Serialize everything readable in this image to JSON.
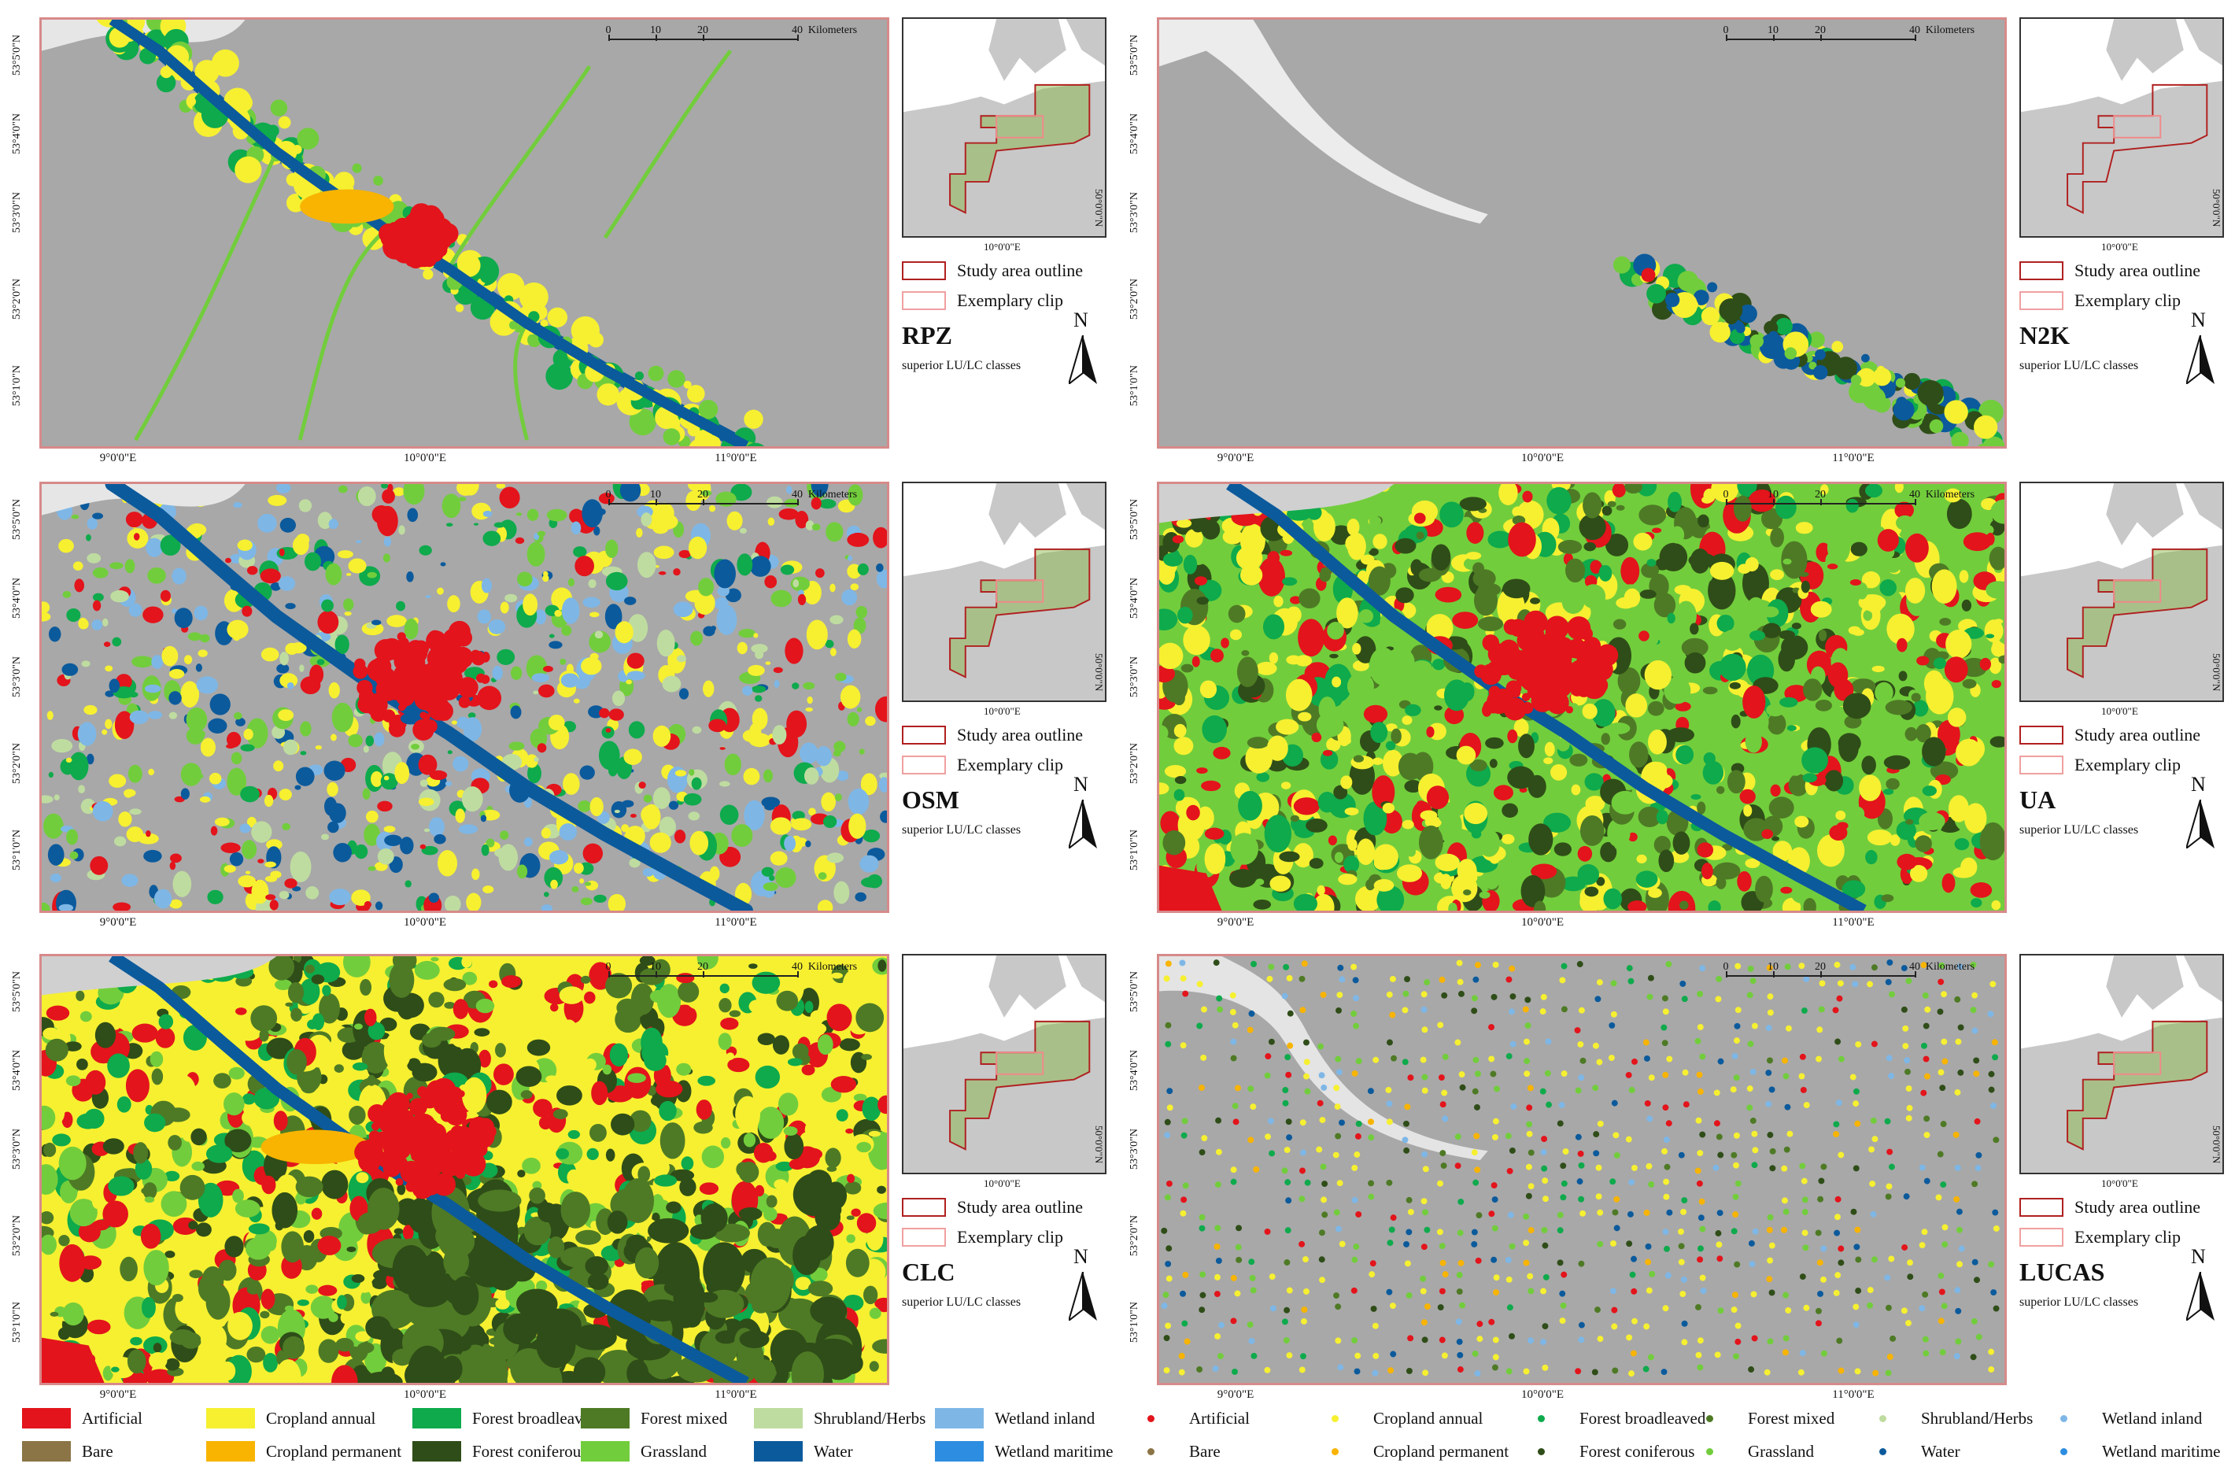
{
  "lat_ticks": [
    "53°5'0\"N",
    "53°4'0\"N",
    "53°3'0\"N",
    "53°2'0\"N",
    "53°1'0\"N"
  ],
  "lon_ticks": [
    "9°0'0\"E",
    "10°0'0\"E",
    "11°0'0\"E"
  ],
  "scale": {
    "ticks": [
      "0",
      "10",
      "20",
      "40"
    ],
    "unit": "Kilometers"
  },
  "inset": {
    "lon": "10°0'0\"E",
    "lat": "50°0'0\"N"
  },
  "inset_legend": {
    "study": "Study area outline",
    "clip": "Exemplary clip"
  },
  "superior": "superior LU/LC classes",
  "north": "N",
  "panels": [
    {
      "name": "RPZ",
      "style": "rpz"
    },
    {
      "name": "N2K",
      "style": "n2k"
    },
    {
      "name": "OSM",
      "style": "osm"
    },
    {
      "name": "UA",
      "style": "ua"
    },
    {
      "name": "CLC",
      "style": "clc"
    },
    {
      "name": "LUCAS",
      "style": "lucas"
    }
  ],
  "legend": [
    {
      "label": "Artificial",
      "color": "#e3141b"
    },
    {
      "label": "Bare",
      "color": "#8b7446"
    },
    {
      "label": "Cropland annual",
      "color": "#f6f031"
    },
    {
      "label": "Cropland permanent",
      "color": "#f8b400"
    },
    {
      "label": "Forest broadleaved",
      "color": "#0eaa4c"
    },
    {
      "label": "Forest coniferous",
      "color": "#2f4d18"
    },
    {
      "label": "Forest mixed",
      "color": "#4e7a25"
    },
    {
      "label": "Grassland",
      "color": "#72cd3c"
    },
    {
      "label": "Shrubland/Herbs",
      "color": "#bfdca0"
    },
    {
      "label": "Water",
      "color": "#0b5a9c"
    },
    {
      "label": "Wetland inland",
      "color": "#7eb7e6"
    },
    {
      "label": "Wetland maritime",
      "color": "#2d8de0"
    }
  ]
}
